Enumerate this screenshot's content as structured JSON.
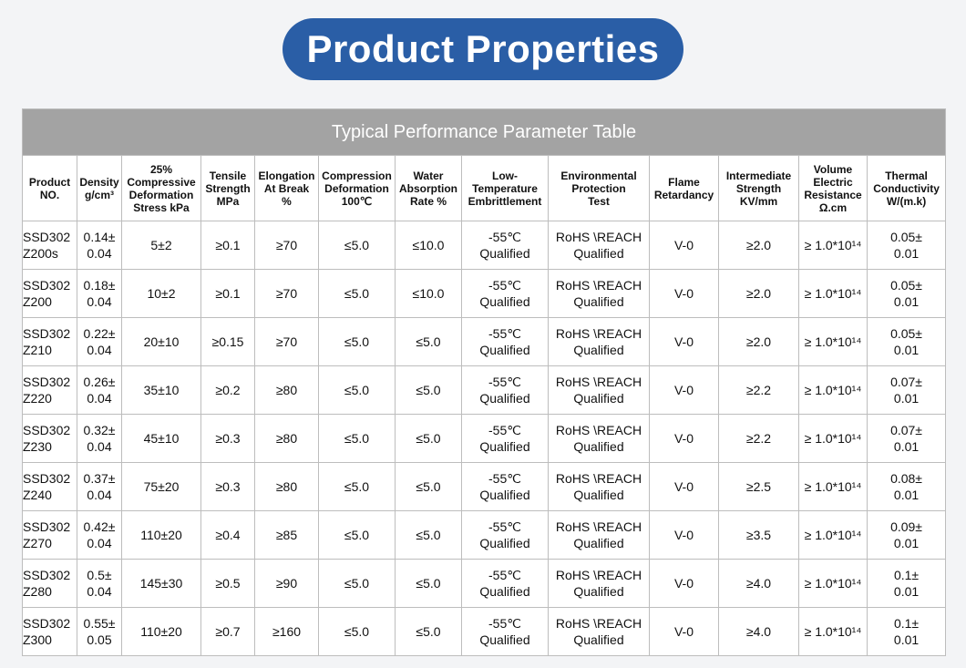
{
  "header": {
    "title": "Product Properties"
  },
  "table": {
    "caption": "Typical Performance Parameter Table",
    "columns": [
      "Product\nNO.",
      "Density\ng/cm³",
      "25%\nCompressive\nDeformation\nStress kPa",
      "Tensile\nStrength\nMPa",
      "Elongation\nAt Break\n%",
      "Compression\nDeformation\n100℃",
      "Water\nAbsorption\nRate %",
      "Low-\nTemperature\nEmbrittlement",
      "Environmental\nProtection\nTest",
      "Flame\nRetardancy",
      "Intermediate\nStrength\nKV/mm",
      "Volume\nElectric\nResistance\nΩ.cm",
      "Thermal\nConductivity\nW/(m.k)"
    ],
    "rows": [
      [
        "SSD302\nZ200s",
        "0.14±\n0.04",
        "5±2",
        "≥0.1",
        "≥70",
        "≤5.0",
        "≤10.0",
        "-55℃\nQualified",
        "RoHS \\REACH\nQualified",
        "V-0",
        "≥2.0",
        "≥ 1.0*10¹⁴",
        "0.05±\n0.01"
      ],
      [
        "SSD302\nZ200",
        "0.18±\n0.04",
        "10±2",
        "≥0.1",
        "≥70",
        "≤5.0",
        "≤10.0",
        "-55℃\nQualified",
        "RoHS \\REACH\nQualified",
        "V-0",
        "≥2.0",
        "≥ 1.0*10¹⁴",
        "0.05±\n0.01"
      ],
      [
        "SSD302\nZ210",
        "0.22±\n0.04",
        "20±10",
        "≥0.15",
        "≥70",
        "≤5.0",
        "≤5.0",
        "-55℃\nQualified",
        "RoHS \\REACH\nQualified",
        "V-0",
        "≥2.0",
        "≥ 1.0*10¹⁴",
        "0.05±\n0.01"
      ],
      [
        "SSD302\nZ220",
        "0.26±\n0.04",
        "35±10",
        "≥0.2",
        "≥80",
        "≤5.0",
        "≤5.0",
        "-55℃\nQualified",
        "RoHS \\REACH\nQualified",
        "V-0",
        "≥2.2",
        "≥ 1.0*10¹⁴",
        "0.07±\n0.01"
      ],
      [
        "SSD302\nZ230",
        "0.32±\n0.04",
        "45±10",
        "≥0.3",
        "≥80",
        "≤5.0",
        "≤5.0",
        "-55℃\nQualified",
        "RoHS \\REACH\nQualified",
        "V-0",
        "≥2.2",
        "≥ 1.0*10¹⁴",
        "0.07±\n0.01"
      ],
      [
        "SSD302\nZ240",
        "0.37±\n0.04",
        "75±20",
        "≥0.3",
        "≥80",
        "≤5.0",
        "≤5.0",
        "-55℃\nQualified",
        "RoHS \\REACH\nQualified",
        "V-0",
        "≥2.5",
        "≥ 1.0*10¹⁴",
        "0.08±\n0.01"
      ],
      [
        "SSD302\nZ270",
        "0.42±\n0.04",
        "110±20",
        "≥0.4",
        "≥85",
        "≤5.0",
        "≤5.0",
        "-55℃\nQualified",
        "RoHS \\REACH\nQualified",
        "V-0",
        "≥3.5",
        "≥ 1.0*10¹⁴",
        "0.09±\n0.01"
      ],
      [
        "SSD302\nZ280",
        "0.5±\n0.04",
        "145±30",
        "≥0.5",
        "≥90",
        "≤5.0",
        "≤5.0",
        "-55℃\nQualified",
        "RoHS \\REACH\nQualified",
        "V-0",
        "≥4.0",
        "≥ 1.0*10¹⁴",
        "0.1±\n0.01"
      ],
      [
        "SSD302\nZ300",
        "0.55±\n0.05",
        "110±20",
        "≥0.7",
        "≥160",
        "≤5.0",
        "≤5.0",
        "-55℃\nQualified",
        "RoHS \\REACH\nQualified",
        "V-0",
        "≥4.0",
        "≥ 1.0*10¹⁴",
        "0.1±\n0.01"
      ]
    ]
  }
}
